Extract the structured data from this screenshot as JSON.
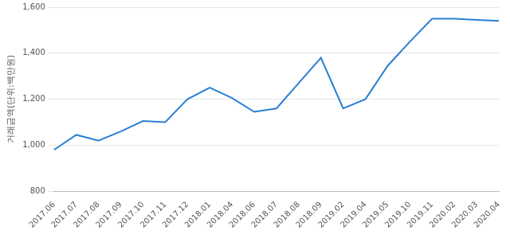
{
  "chart_data": {
    "type": "line",
    "y_label": "거래금액(단위:백만원)",
    "categories": [
      "2017.06",
      "2017.07",
      "2017.08",
      "2017.09",
      "2017.10",
      "2017.11",
      "2017.12",
      "2018.01",
      "2018.04",
      "2018.06",
      "2018.07",
      "2018.08",
      "2018.09",
      "2019.02",
      "2019.04",
      "2019.05",
      "2019.10",
      "2019.11",
      "2020.02",
      "2020.03",
      "2020.04"
    ],
    "values": [
      980,
      1045,
      1020,
      1060,
      1105,
      1100,
      1200,
      1250,
      1205,
      1145,
      1160,
      1270,
      1380,
      1160,
      1200,
      1345,
      1450,
      1550,
      1550,
      1545,
      1540
    ],
    "color": "#2a7fd4",
    "ylim": [
      800,
      1600
    ],
    "yticks": [
      800,
      {
        "value": 1000,
        "label": "1,000"
      },
      {
        "value": 1200,
        "label": "1,200"
      },
      {
        "value": 1400,
        "label": "1,400"
      },
      {
        "value": 1600,
        "label": "1,600"
      }
    ],
    "grid": true
  }
}
